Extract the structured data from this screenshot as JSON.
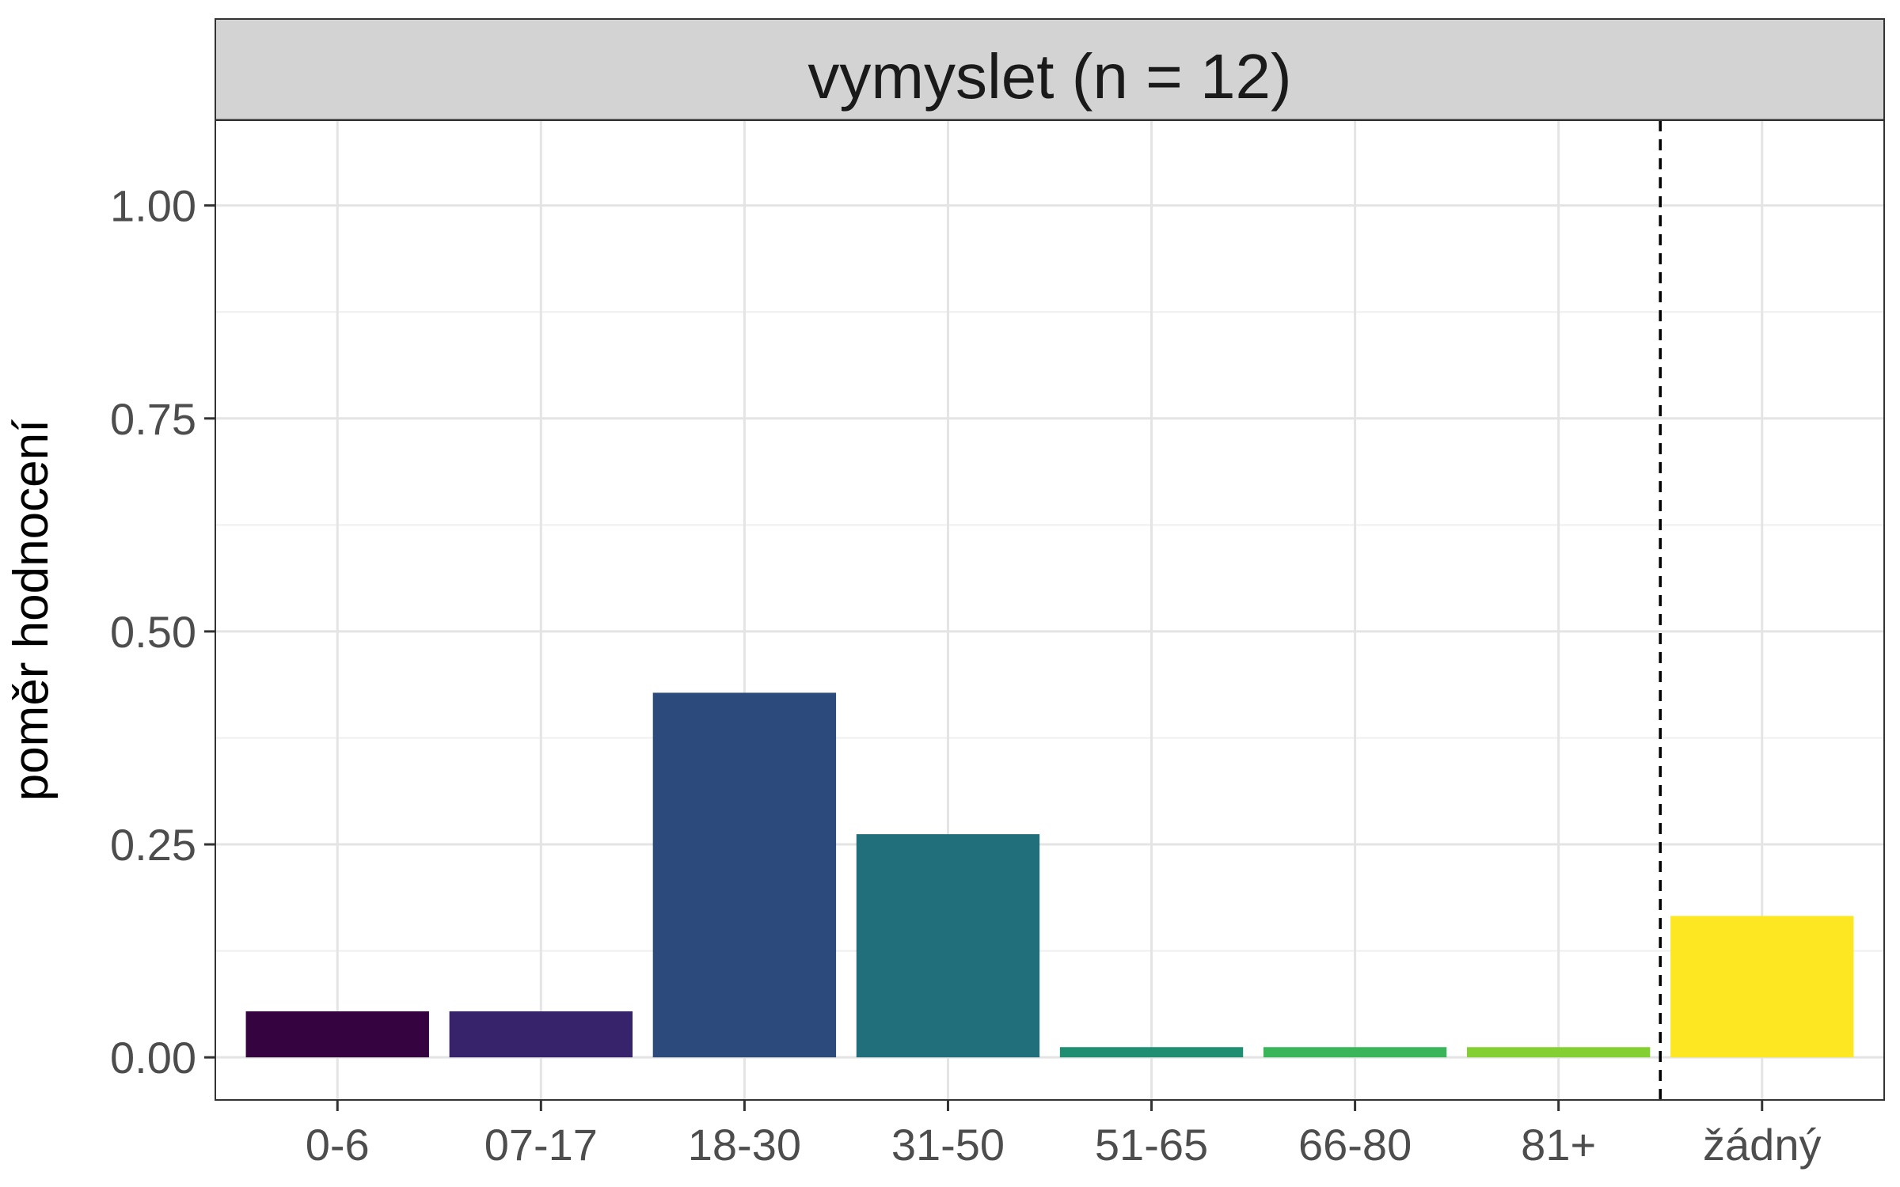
{
  "chart_data": {
    "type": "bar",
    "title": "vymyslet (n = 12)",
    "xlabel": "",
    "ylabel": "poměr hodnocení",
    "categories": [
      "0-6",
      "07-17",
      "18-30",
      "31-50",
      "51-65",
      "66-80",
      "81+",
      "žádný"
    ],
    "values": [
      0.054,
      0.054,
      0.428,
      0.262,
      0.012,
      0.012,
      0.012,
      0.166
    ],
    "colors": [
      "#35033f",
      "#37236b",
      "#2c4a7b",
      "#216f7b",
      "#1f8e72",
      "#3bb55a",
      "#84d033",
      "#fde622"
    ],
    "ylim": [
      -0.05,
      1.1
    ],
    "yticks": [
      0.0,
      0.25,
      0.5,
      0.75,
      1.0
    ],
    "ytick_labels": [
      "0.00",
      "0.25",
      "0.50",
      "0.75",
      "1.00"
    ],
    "separator_after_category": "81+",
    "separator_style": "dashed",
    "grid": true,
    "legend": "none"
  }
}
